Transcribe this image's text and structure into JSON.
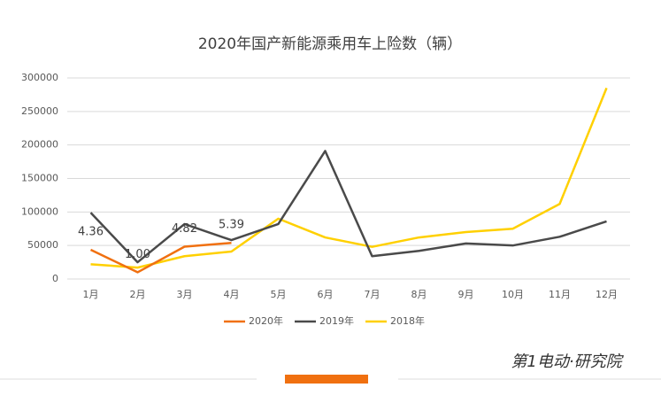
{
  "chart_data": {
    "type": "line",
    "title": "2020年国产新能源乘用车上险数（辆）",
    "categories": [
      "1月",
      "2月",
      "3月",
      "4月",
      "5月",
      "6月",
      "7月",
      "8月",
      "9月",
      "10月",
      "11月",
      "12月"
    ],
    "series": [
      {
        "name": "2020年",
        "color": "#f07010",
        "values": [
          43600,
          10000,
          48200,
          53900,
          null,
          null,
          null,
          null,
          null,
          null,
          null,
          null
        ],
        "value_labels": [
          "4.36",
          "1.00",
          "4.82",
          "5.39",
          null,
          null,
          null,
          null,
          null,
          null,
          null,
          null
        ]
      },
      {
        "name": "2019年",
        "color": "#4a4a4a",
        "values": [
          99000,
          25000,
          82000,
          58000,
          82000,
          191000,
          34000,
          42000,
          53000,
          50000,
          63000,
          86000
        ]
      },
      {
        "name": "2018年",
        "color": "#ffd000",
        "values": [
          22000,
          17000,
          34000,
          41000,
          90000,
          62000,
          48000,
          62000,
          70000,
          75000,
          112000,
          285000
        ]
      }
    ],
    "ylim": [
      0,
      300000
    ],
    "yticks": [
      0,
      50000,
      100000,
      150000,
      200000,
      250000,
      300000
    ],
    "grid": true,
    "legend": "bottom",
    "brand": "第1电动·研究院"
  }
}
